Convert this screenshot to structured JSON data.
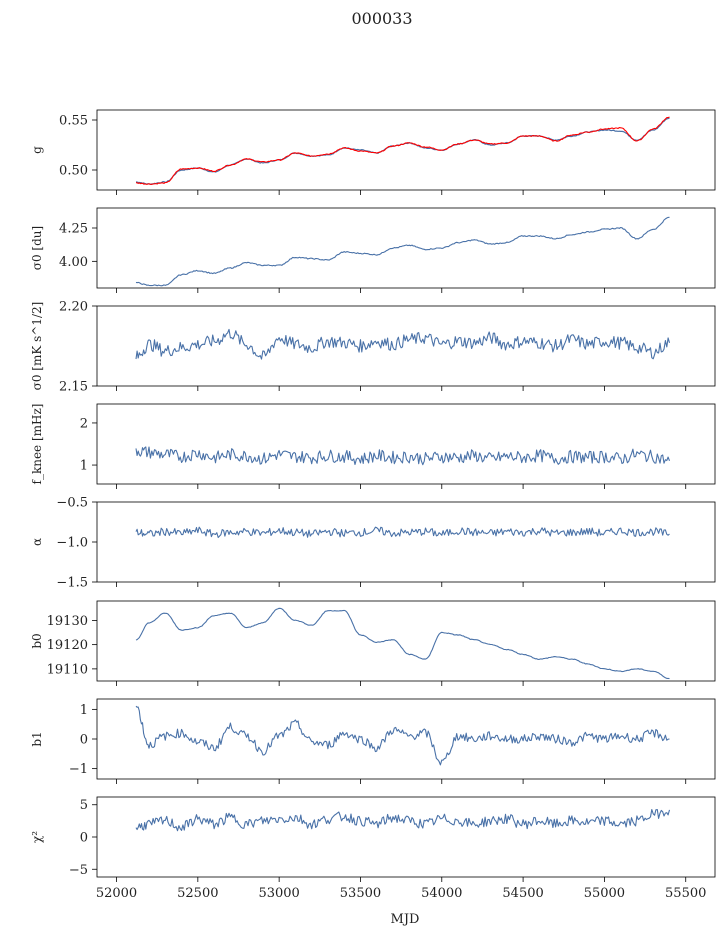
{
  "figure": {
    "title": "000033",
    "xlabel": "MJD",
    "x_ticks": [
      52000,
      52500,
      53000,
      53500,
      54000,
      54500,
      55000,
      55500
    ],
    "xlim": [
      51880,
      55680
    ],
    "line_color": "#4a72a8",
    "highlight_color": "#ff0000"
  },
  "chart_data": [
    {
      "type": "line",
      "ylabel": "g",
      "ylim": [
        0.48,
        0.56
      ],
      "yticks": [
        0.5,
        0.55
      ],
      "ytick_labels": [
        "0.50",
        "0.55"
      ],
      "series": [
        {
          "color": "#4a72a8",
          "x": [
            52120,
            52200,
            52300,
            52400,
            52500,
            52600,
            52700,
            52800,
            52900,
            53000,
            53100,
            53200,
            53300,
            53400,
            53500,
            53600,
            53700,
            53800,
            53900,
            54000,
            54100,
            54200,
            54300,
            54400,
            54500,
            54600,
            54700,
            54800,
            54900,
            55000,
            55100,
            55200,
            55300,
            55400
          ],
          "y": [
            0.488,
            0.486,
            0.488,
            0.5,
            0.502,
            0.498,
            0.505,
            0.511,
            0.507,
            0.51,
            0.517,
            0.514,
            0.515,
            0.522,
            0.52,
            0.517,
            0.524,
            0.527,
            0.522,
            0.52,
            0.526,
            0.53,
            0.525,
            0.527,
            0.534,
            0.534,
            0.53,
            0.534,
            0.538,
            0.54,
            0.539,
            0.53,
            0.54,
            0.552
          ]
        },
        {
          "color": "#ff0000",
          "x": [
            52120,
            52200,
            52300,
            52400,
            52500,
            52600,
            52700,
            52800,
            52900,
            53000,
            53100,
            53200,
            53300,
            53400,
            53500,
            53600,
            53700,
            53800,
            53900,
            54000,
            54100,
            54200,
            54300,
            54400,
            54500,
            54600,
            54700,
            54800,
            54900,
            55000,
            55100,
            55200,
            55300,
            55400
          ],
          "y": [
            0.487,
            0.486,
            0.487,
            0.501,
            0.502,
            0.499,
            0.505,
            0.511,
            0.508,
            0.51,
            0.517,
            0.514,
            0.516,
            0.522,
            0.519,
            0.517,
            0.524,
            0.527,
            0.523,
            0.52,
            0.526,
            0.53,
            0.526,
            0.527,
            0.534,
            0.534,
            0.529,
            0.535,
            0.538,
            0.541,
            0.542,
            0.529,
            0.541,
            0.553
          ]
        }
      ]
    },
    {
      "type": "line",
      "ylabel": "σ0 [du]",
      "ylim": [
        3.8,
        4.4
      ],
      "yticks": [
        4.0,
        4.25
      ],
      "ytick_labels": [
        "4.00",
        "4.25"
      ],
      "series": [
        {
          "color": "#4a72a8",
          "x": [
            52120,
            52200,
            52300,
            52400,
            52500,
            52600,
            52700,
            52800,
            52900,
            53000,
            53100,
            53200,
            53300,
            53400,
            53500,
            53600,
            53700,
            53800,
            53900,
            54000,
            54100,
            54200,
            54300,
            54400,
            54500,
            54600,
            54700,
            54800,
            54900,
            55000,
            55100,
            55200,
            55300,
            55400
          ],
          "y": [
            3.84,
            3.82,
            3.82,
            3.9,
            3.93,
            3.91,
            3.95,
            3.99,
            3.97,
            3.97,
            4.03,
            4.02,
            4.01,
            4.07,
            4.06,
            4.05,
            4.1,
            4.12,
            4.09,
            4.1,
            4.14,
            4.16,
            4.13,
            4.14,
            4.19,
            4.19,
            4.17,
            4.2,
            4.22,
            4.24,
            4.25,
            4.17,
            4.24,
            4.33
          ]
        }
      ]
    },
    {
      "type": "line",
      "ylabel": "σ0 [mK s^1/2]",
      "ylim": [
        2.15,
        2.2
      ],
      "yticks": [
        2.15,
        2.2
      ],
      "ytick_labels": [
        "2.15",
        "2.20"
      ],
      "series": [
        {
          "color": "#4a72a8",
          "x": [
            52120,
            52200,
            52300,
            52400,
            52500,
            52600,
            52700,
            52800,
            52900,
            53000,
            53100,
            53200,
            53300,
            53400,
            53500,
            53600,
            53700,
            53800,
            53900,
            54000,
            54100,
            54200,
            54300,
            54400,
            54500,
            54600,
            54700,
            54800,
            54900,
            55000,
            55100,
            55200,
            55300,
            55400
          ],
          "y": [
            2.168,
            2.176,
            2.172,
            2.174,
            2.176,
            2.178,
            2.183,
            2.176,
            2.168,
            2.18,
            2.176,
            2.174,
            2.178,
            2.177,
            2.175,
            2.178,
            2.176,
            2.179,
            2.18,
            2.176,
            2.178,
            2.177,
            2.18,
            2.176,
            2.178,
            2.177,
            2.175,
            2.179,
            2.176,
            2.178,
            2.177,
            2.174,
            2.171,
            2.177
          ]
        }
      ]
    },
    {
      "type": "line",
      "ylabel": "f_knee [mHz]",
      "ylim": [
        0.55,
        2.45
      ],
      "yticks": [
        1,
        2
      ],
      "ytick_labels": [
        "1",
        "2"
      ],
      "series": [
        {
          "color": "#4a72a8",
          "x": [
            52120,
            52200,
            52300,
            52400,
            52500,
            52600,
            52700,
            52800,
            52900,
            53000,
            53100,
            53200,
            53300,
            53400,
            53500,
            53600,
            53700,
            53800,
            53900,
            54000,
            54100,
            54200,
            54300,
            54400,
            54500,
            54600,
            54700,
            54800,
            54900,
            55000,
            55100,
            55200,
            55300,
            55400
          ],
          "y": [
            1.35,
            1.3,
            1.25,
            1.2,
            1.28,
            1.18,
            1.25,
            1.22,
            1.15,
            1.25,
            1.2,
            1.18,
            1.22,
            1.2,
            1.15,
            1.22,
            1.18,
            1.2,
            1.15,
            1.2,
            1.18,
            1.22,
            1.15,
            1.2,
            1.18,
            1.22,
            1.15,
            1.2,
            1.18,
            1.2,
            1.15,
            1.25,
            1.2,
            1.1
          ]
        }
      ]
    },
    {
      "type": "line",
      "ylabel": "α",
      "ylim": [
        -1.5,
        -0.5
      ],
      "yticks": [
        -1.5,
        -1.0,
        -0.5
      ],
      "ytick_labels": [
        "−1.5",
        "−1.0",
        "−0.5"
      ],
      "series": [
        {
          "color": "#4a72a8",
          "x": [
            52120,
            52200,
            52300,
            52400,
            52500,
            52600,
            52700,
            52800,
            52900,
            53000,
            53100,
            53200,
            53300,
            53400,
            53500,
            53600,
            53700,
            53800,
            53900,
            54000,
            54100,
            54200,
            54300,
            54400,
            54500,
            54600,
            54700,
            54800,
            54900,
            55000,
            55100,
            55200,
            55300,
            55400
          ],
          "y": [
            -0.88,
            -0.9,
            -0.87,
            -0.89,
            -0.86,
            -0.9,
            -0.88,
            -0.87,
            -0.89,
            -0.86,
            -0.88,
            -0.9,
            -0.87,
            -0.89,
            -0.88,
            -0.86,
            -0.89,
            -0.88,
            -0.87,
            -0.9,
            -0.86,
            -0.88,
            -0.89,
            -0.87,
            -0.88,
            -0.86,
            -0.89,
            -0.88,
            -0.87,
            -0.89,
            -0.86,
            -0.88,
            -0.87,
            -0.9
          ]
        }
      ]
    },
    {
      "type": "line",
      "ylabel": "b0",
      "ylim": [
        19105,
        19138
      ],
      "yticks": [
        19110,
        19120,
        19130
      ],
      "ytick_labels": [
        "19110",
        "19120",
        "19130"
      ],
      "series": [
        {
          "color": "#4a72a8",
          "x": [
            52120,
            52200,
            52300,
            52400,
            52500,
            52600,
            52700,
            52800,
            52900,
            53000,
            53100,
            53200,
            53300,
            53400,
            53500,
            53600,
            53700,
            53800,
            53900,
            54000,
            54100,
            54200,
            54300,
            54400,
            54500,
            54600,
            54700,
            54800,
            54900,
            55000,
            55100,
            55200,
            55300,
            55400
          ],
          "y": [
            19122,
            19129,
            19133,
            19126,
            19127,
            19132,
            19133,
            19127,
            19129,
            19135,
            19130,
            19128,
            19134,
            19134,
            19124,
            19121,
            19122,
            19116,
            19114,
            19125,
            19124,
            19122,
            19120,
            19118,
            19116,
            19114,
            19115,
            19114,
            19112,
            19110,
            19109,
            19110,
            19109,
            19106
          ]
        }
      ]
    },
    {
      "type": "line",
      "ylabel": "b1",
      "ylim": [
        -1.35,
        1.35
      ],
      "yticks": [
        -1,
        0,
        1
      ],
      "ytick_labels": [
        "−1",
        "0",
        "1"
      ],
      "series": [
        {
          "color": "#4a72a8",
          "x": [
            52120,
            52200,
            52300,
            52400,
            52500,
            52600,
            52700,
            52800,
            52900,
            53000,
            53100,
            53200,
            53300,
            53400,
            53500,
            53600,
            53700,
            53800,
            53900,
            54000,
            54100,
            54200,
            54300,
            54400,
            54500,
            54600,
            54700,
            54800,
            54900,
            55000,
            55100,
            55200,
            55300,
            55400
          ],
          "y": [
            1.1,
            -0.2,
            0.1,
            0.2,
            -0.1,
            -0.3,
            0.4,
            0.1,
            -0.4,
            0.1,
            0.5,
            -0.1,
            -0.2,
            0.2,
            0.0,
            -0.3,
            0.3,
            0.1,
            0.2,
            -0.8,
            0.1,
            0.0,
            0.1,
            0.0,
            0.0,
            0.1,
            0.0,
            -0.1,
            0.1,
            0.0,
            0.1,
            0.0,
            0.2,
            0.0
          ]
        }
      ]
    },
    {
      "type": "line",
      "ylabel": "χ²",
      "ylim": [
        -6.2,
        6.2
      ],
      "yticks": [
        -5,
        0,
        5
      ],
      "ytick_labels": [
        "−5",
        "0",
        "5"
      ],
      "series": [
        {
          "color": "#4a72a8",
          "x": [
            52120,
            52200,
            52300,
            52400,
            52500,
            52600,
            52700,
            52800,
            52900,
            53000,
            53100,
            53200,
            53300,
            53400,
            53500,
            53600,
            53700,
            53800,
            53900,
            54000,
            54100,
            54200,
            54300,
            54400,
            54500,
            54600,
            54700,
            54800,
            54900,
            55000,
            55100,
            55200,
            55300,
            55400
          ],
          "y": [
            1.5,
            2.0,
            2.5,
            1.5,
            2.8,
            2.0,
            3.0,
            2.0,
            2.5,
            2.8,
            3.0,
            2.0,
            2.8,
            3.2,
            2.5,
            2.0,
            3.0,
            2.5,
            2.0,
            2.8,
            2.5,
            2.0,
            2.5,
            2.8,
            2.0,
            2.5,
            2.0,
            2.5,
            2.2,
            2.5,
            2.0,
            2.5,
            3.5,
            4.2
          ]
        }
      ]
    }
  ]
}
